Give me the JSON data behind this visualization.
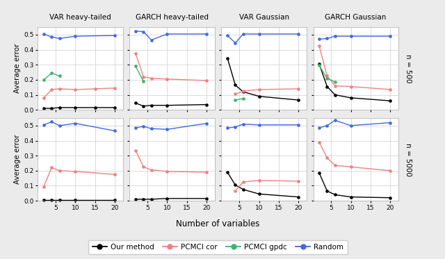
{
  "x": [
    2,
    4,
    6,
    10,
    15,
    20
  ],
  "col_titles": [
    "VAR heavy-tailed",
    "GARCH heavy-tailed",
    "VAR Gaussian",
    "GARCH Gaussian"
  ],
  "row_labels": [
    "n = 500",
    "n = 5000"
  ],
  "methods": [
    "our_method",
    "pcmci_cor",
    "pcmci_gpdc",
    "random"
  ],
  "colors": {
    "our_method": "#000000",
    "pcmci_cor": "#F08080",
    "pcmci_gpdc": "#3CB371",
    "random": "#4169E1"
  },
  "legend_labels": [
    "Our method",
    "PCMCI cor",
    "PCMCI gpdc",
    "Random"
  ],
  "data": {
    "VAR heavy-tailed": {
      "n500": {
        "our_method": [
          0.01,
          0.01,
          0.015,
          0.015,
          0.015,
          0.015
        ],
        "pcmci_cor": [
          0.08,
          0.135,
          0.14,
          0.135,
          0.14,
          0.145
        ],
        "pcmci_gpdc": [
          0.2,
          0.245,
          0.225,
          null,
          null,
          null
        ],
        "random": [
          0.505,
          0.485,
          0.475,
          0.49,
          null,
          0.495
        ]
      },
      "n5000": {
        "our_method": [
          0.005,
          0.005,
          0.005,
          0.005,
          null,
          0.005
        ],
        "pcmci_cor": [
          0.095,
          0.22,
          0.2,
          0.195,
          null,
          0.175
        ],
        "pcmci_gpdc": [
          null,
          null,
          null,
          null,
          null,
          null
        ],
        "random": [
          0.505,
          0.525,
          0.5,
          0.515,
          null,
          0.465
        ]
      }
    },
    "GARCH heavy-tailed": {
      "n500": {
        "our_method": [
          0.045,
          0.025,
          0.03,
          0.03,
          null,
          0.035
        ],
        "pcmci_cor": [
          0.375,
          0.22,
          0.21,
          0.205,
          null,
          0.195
        ],
        "pcmci_gpdc": [
          0.29,
          0.19,
          null,
          null,
          null,
          null
        ],
        "random": [
          0.525,
          0.52,
          0.465,
          0.505,
          null,
          0.505
        ]
      },
      "n5000": {
        "our_method": [
          0.01,
          0.01,
          0.01,
          0.015,
          null,
          0.015
        ],
        "pcmci_cor": [
          0.335,
          0.225,
          0.205,
          0.195,
          null,
          0.19
        ],
        "pcmci_gpdc": [
          null,
          null,
          null,
          null,
          null,
          null
        ],
        "random": [
          0.485,
          0.495,
          0.48,
          0.475,
          null,
          0.515
        ]
      }
    },
    "VAR Gaussian": {
      "n500": {
        "our_method": [
          0.345,
          0.165,
          0.12,
          0.09,
          null,
          0.065
        ],
        "pcmci_cor": [
          null,
          0.105,
          0.125,
          0.135,
          null,
          0.14
        ],
        "pcmci_gpdc": [
          null,
          0.065,
          0.075,
          null,
          null,
          null
        ],
        "random": [
          0.495,
          0.445,
          0.505,
          0.505,
          null,
          0.505
        ]
      },
      "n5000": {
        "our_method": [
          0.19,
          0.105,
          0.075,
          0.045,
          null,
          0.025
        ],
        "pcmci_cor": [
          null,
          0.065,
          0.125,
          0.135,
          null,
          0.13
        ],
        "pcmci_gpdc": [
          null,
          null,
          null,
          null,
          null,
          null
        ],
        "random": [
          0.485,
          0.49,
          0.51,
          0.505,
          null,
          0.505
        ]
      }
    },
    "GARCH Gaussian": {
      "n500": {
        "our_method": [
          0.305,
          0.155,
          0.1,
          0.08,
          null,
          0.06
        ],
        "pcmci_cor": [
          0.425,
          0.225,
          0.16,
          0.155,
          null,
          0.135
        ],
        "pcmci_gpdc": [
          0.295,
          0.21,
          0.185,
          null,
          null,
          null
        ],
        "random": [
          0.47,
          0.475,
          0.49,
          0.49,
          null,
          0.49
        ]
      },
      "n5000": {
        "our_method": [
          0.185,
          0.065,
          0.04,
          0.025,
          null,
          0.02
        ],
        "pcmci_cor": [
          0.39,
          0.285,
          0.235,
          0.225,
          null,
          0.2
        ],
        "pcmci_gpdc": [
          null,
          null,
          null,
          null,
          null,
          null
        ],
        "random": [
          0.485,
          0.5,
          0.535,
          0.5,
          null,
          0.52
        ]
      }
    }
  },
  "ylim": [
    0,
    0.55
  ],
  "yticks": [
    0.0,
    0.1,
    0.2,
    0.3,
    0.4,
    0.5
  ],
  "xlabel": "Number of variables",
  "ylabel": "Average error",
  "bg_color": "#EBEBEB",
  "panel_bg": "#FFFFFF",
  "strip_bg": "#D9D9D9"
}
